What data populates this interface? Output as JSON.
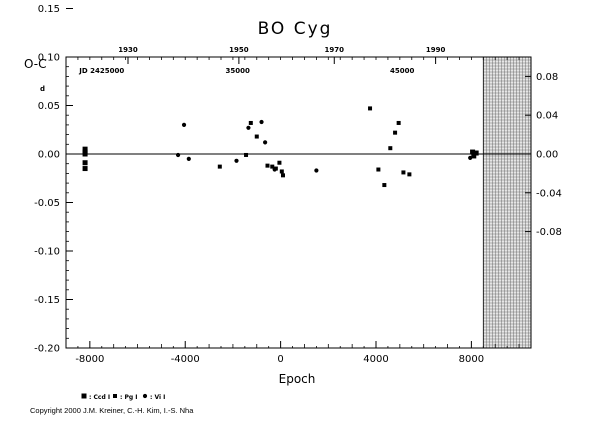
{
  "chart_data": {
    "type": "scatter",
    "title": "BO Cyg",
    "ylabel": "O-C",
    "ylabel_unit": "d",
    "xlabel": "Epoch",
    "xlim": [
      -9000,
      10500
    ],
    "ylim": [
      -0.2,
      0.1
    ],
    "x_ticks": [
      -8000,
      -4000,
      0,
      4000,
      8000
    ],
    "x_tick_labels": [
      "-8000",
      "-4000",
      "0",
      "4000",
      "8000"
    ],
    "y_ticks": [
      -0.2,
      -0.15,
      -0.1,
      -0.05,
      0.0,
      0.05,
      0.1,
      0.15
    ],
    "y_tick_labels": [
      "-0.20",
      "-0.15",
      "-0.10",
      "-0.05",
      "0.00",
      "0.05",
      "0.10",
      "0.15"
    ],
    "right_ticks": [
      0.08,
      0.04,
      0.0,
      -0.04,
      -0.08
    ],
    "right_tick_labels": [
      "0.08",
      "0.04",
      "0.00",
      "-0.04",
      "-0.08"
    ],
    "top_axis": {
      "labels": [
        {
          "text": "1930",
          "epoch": -6400
        },
        {
          "text": "1950",
          "epoch": -1750
        },
        {
          "text": "1970",
          "epoch": 2250
        },
        {
          "text": "1990",
          "epoch": 6500
        }
      ],
      "jd_labels": [
        {
          "text": "JD 2425000",
          "epoch": -7500
        },
        {
          "text": "35000",
          "epoch": -1800
        },
        {
          "text": "45000",
          "epoch": 5100
        }
      ]
    },
    "shaded_future_from_epoch": 8500,
    "zero_line": 0.0,
    "grid": false,
    "legend": [
      {
        "symbol": "square",
        "label": ": Ccd I"
      },
      {
        "symbol": "small-square",
        "label": ": Pg I"
      },
      {
        "symbol": "circle",
        "label": ": Vi I"
      }
    ],
    "series": [
      {
        "symbol": "square",
        "points": [
          [
            -8200,
            0.005
          ],
          [
            -8200,
            0.002
          ],
          [
            -8200,
            0.0
          ],
          [
            -8200,
            -0.015
          ],
          [
            -8200,
            -0.009
          ],
          [
            8050,
            0.002
          ],
          [
            8100,
            -0.002
          ],
          [
            8200,
            0.001
          ]
        ]
      },
      {
        "symbol": "small-square",
        "points": [
          [
            -2550,
            -0.013
          ],
          [
            -1450,
            -0.001
          ],
          [
            -1250,
            0.032
          ],
          [
            -1000,
            0.018
          ],
          [
            -550,
            -0.012
          ],
          [
            -350,
            -0.013
          ],
          [
            -200,
            -0.015
          ],
          [
            -50,
            -0.009
          ],
          [
            50,
            -0.018
          ],
          [
            100,
            -0.022
          ],
          [
            3750,
            0.047
          ],
          [
            4100,
            -0.016
          ],
          [
            4350,
            -0.032
          ],
          [
            4600,
            0.006
          ],
          [
            4800,
            0.022
          ],
          [
            4950,
            0.032
          ],
          [
            5150,
            -0.019
          ],
          [
            5400,
            -0.021
          ]
        ]
      },
      {
        "symbol": "circle",
        "points": [
          [
            -4300,
            -0.001
          ],
          [
            -4050,
            0.03
          ],
          [
            -3850,
            -0.005
          ],
          [
            -1850,
            -0.007
          ],
          [
            -1350,
            0.027
          ],
          [
            -800,
            0.033
          ],
          [
            -650,
            0.012
          ],
          [
            -250,
            -0.016
          ],
          [
            1500,
            -0.017
          ],
          [
            7950,
            -0.004
          ]
        ]
      }
    ]
  },
  "copyright": "Copyright 2000 J.M. Kreiner, C.-H. Kim, I.-S. Nha"
}
